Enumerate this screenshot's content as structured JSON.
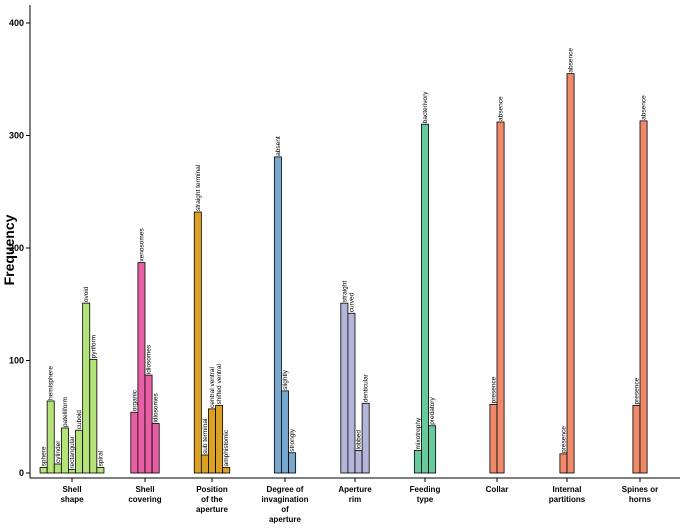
{
  "chart_data": {
    "type": "bar",
    "ylabel": "Frequency",
    "ylim": [
      0,
      420
    ],
    "yticks": [
      0,
      100,
      200,
      300,
      400
    ],
    "grid": false,
    "legend": "none",
    "groups": [
      {
        "label": [
          "Shell",
          "shape"
        ],
        "color": "#b5e37a",
        "bars": [
          {
            "label": "sphere",
            "value": 5
          },
          {
            "label": "hemisphere",
            "value": 64
          },
          {
            "label": "cylinder",
            "value": 8
          },
          {
            "label": "patelliform",
            "value": 40
          },
          {
            "label": "rectangular",
            "value": 3
          },
          {
            "label": "cuboid",
            "value": 38
          },
          {
            "label": "ovoid",
            "value": 151
          },
          {
            "label": "pyriform",
            "value": 101
          },
          {
            "label": "spiral",
            "value": 5
          }
        ]
      },
      {
        "label": [
          "Shell",
          "covering"
        ],
        "color": "#e85fa5",
        "bars": [
          {
            "label": "organic",
            "value": 54
          },
          {
            "label": "xenosomes",
            "value": 187
          },
          {
            "label": "idiosomes",
            "value": 87
          },
          {
            "label": "idiosomes",
            "value": 44
          }
        ]
      },
      {
        "label": [
          "Position",
          "of the",
          "aperture"
        ],
        "color": "#dba124",
        "bars": [
          {
            "label": "straight terminal",
            "value": 232
          },
          {
            "label": "sub terminal",
            "value": 16
          },
          {
            "label": "central ventral",
            "value": 57
          },
          {
            "label": "shifted ventral",
            "value": 60
          },
          {
            "label": "amphistomic",
            "value": 5
          }
        ]
      },
      {
        "label": [
          "Degree of",
          "invagination",
          "of",
          "aperture"
        ],
        "color": "#78a8cd",
        "bars": [
          {
            "label": "absent",
            "value": 281
          },
          {
            "label": "slightly",
            "value": 73
          },
          {
            "label": "strongly",
            "value": 18
          }
        ]
      },
      {
        "label": [
          "Aperture",
          "rim"
        ],
        "color": "#b3b5d9",
        "bars": [
          {
            "label": "straight",
            "value": 151
          },
          {
            "label": "curved",
            "value": 142
          },
          {
            "label": "lobbed",
            "value": 20
          },
          {
            "label": "denticular",
            "value": 62
          }
        ]
      },
      {
        "label": [
          "Feeding",
          "type"
        ],
        "color": "#67c99c",
        "bars": [
          {
            "label": "mixotrophy",
            "value": 20
          },
          {
            "label": "bacterivory",
            "value": 310
          },
          {
            "label": "predatory",
            "value": 42
          }
        ]
      },
      {
        "label": [
          "Collar"
        ],
        "color": "#ee8a6a",
        "bars": [
          {
            "label": "presence",
            "value": 61
          },
          {
            "label": "absence",
            "value": 312
          }
        ]
      },
      {
        "label": [
          "Internal",
          "partitions"
        ],
        "color": "#ee8a6a",
        "bars": [
          {
            "label": "presence",
            "value": 17
          },
          {
            "label": "absence",
            "value": 355
          }
        ]
      },
      {
        "label": [
          "Spines or",
          "horns"
        ],
        "color": "#ee8a6a",
        "bars": [
          {
            "label": "presence",
            "value": 60
          },
          {
            "label": "absence",
            "value": 313
          }
        ]
      }
    ]
  }
}
